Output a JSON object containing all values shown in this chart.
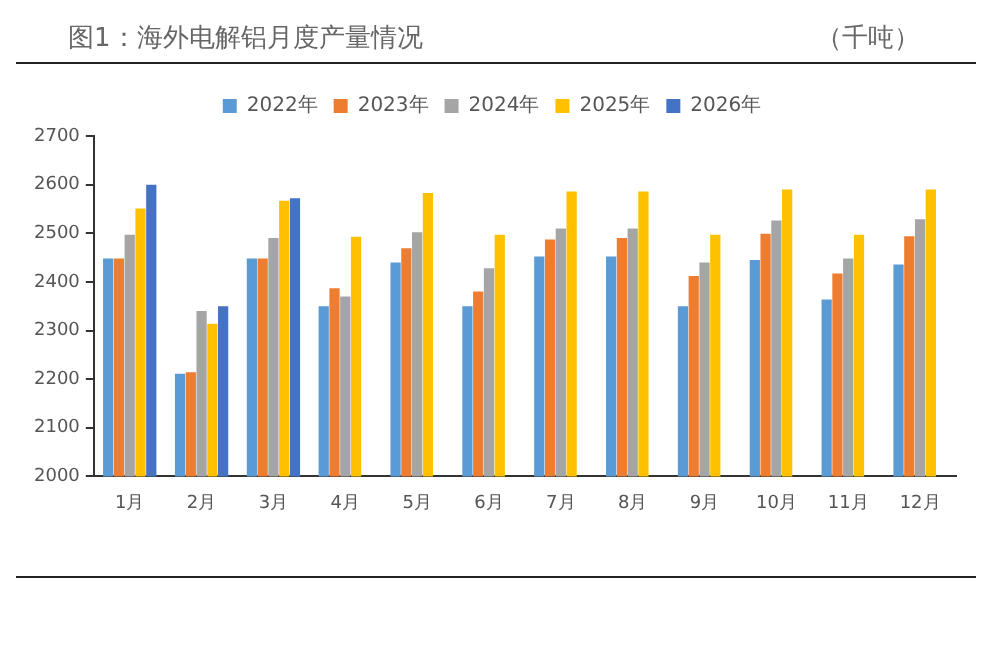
{
  "chart_data": {
    "type": "bar",
    "title": "图1：海外电解铝月度产量情况",
    "annotations": [
      "（千吨）"
    ],
    "categories": [
      "1月",
      "2月",
      "3月",
      "4月",
      "5月",
      "6月",
      "7月",
      "8月",
      "9月",
      "10月",
      "11月",
      "12月"
    ],
    "series": [
      {
        "name": "2022年",
        "color": "#5b9bd5",
        "values": [
          2448,
          2211,
          2448,
          2350,
          2440,
          2350,
          2452,
          2452,
          2350,
          2445,
          2364,
          2436
        ]
      },
      {
        "name": "2023年",
        "color": "#ed7d31",
        "values": [
          2448,
          2214,
          2448,
          2387,
          2469,
          2380,
          2487,
          2490,
          2412,
          2499,
          2417,
          2494
        ]
      },
      {
        "name": "2024年",
        "color": "#a5a5a5",
        "values": [
          2497,
          2340,
          2490,
          2370,
          2502,
          2428,
          2510,
          2510,
          2440,
          2526,
          2448,
          2529
        ]
      },
      {
        "name": "2025年",
        "color": "#ffc000",
        "values": [
          2551,
          2314,
          2567,
          2493,
          2583,
          2497,
          2586,
          2586,
          2497,
          2590,
          2497,
          2590
        ]
      },
      {
        "name": "2026年",
        "color": "#4472c4",
        "values": [
          2600,
          2350,
          2572,
          null,
          null,
          null,
          null,
          null,
          null,
          null,
          null,
          null
        ]
      }
    ],
    "ylim": [
      2000,
      2700
    ],
    "yticks": [
      2000,
      2100,
      2200,
      2300,
      2400,
      2500,
      2600,
      2700
    ],
    "grid": false,
    "legend": "top"
  }
}
